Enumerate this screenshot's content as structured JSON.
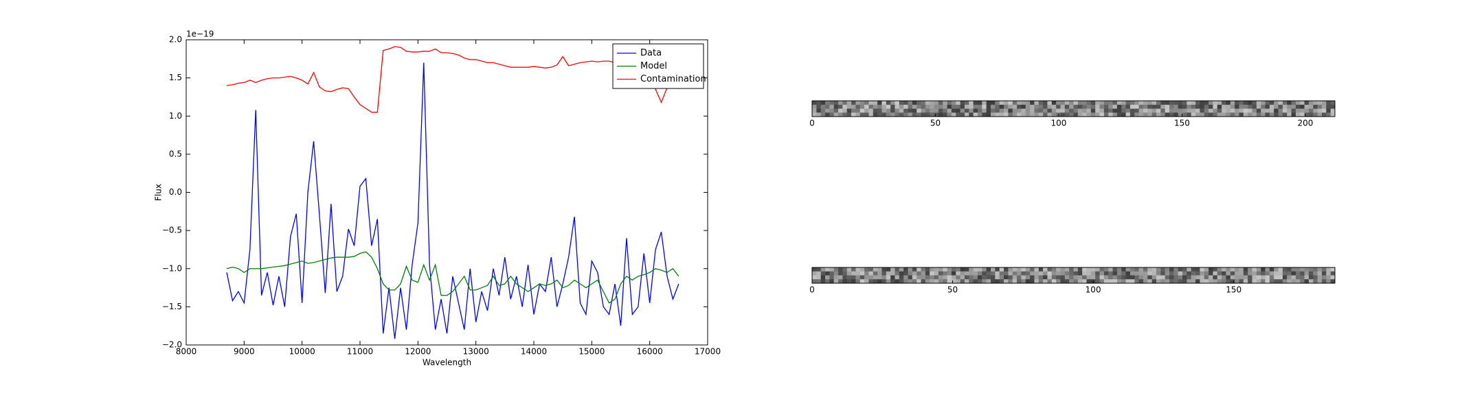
{
  "chart_data": [
    {
      "type": "line",
      "x_label": "Wavelength",
      "y_label": "Flux",
      "y_offset_label": "1e−19",
      "x": [
        8700,
        8800,
        8900,
        9000,
        9100,
        9200,
        9300,
        9400,
        9500,
        9600,
        9700,
        9800,
        9900,
        10000,
        10100,
        10200,
        10300,
        10400,
        10500,
        10600,
        10700,
        10800,
        10900,
        11000,
        11100,
        11200,
        11300,
        11400,
        11500,
        11600,
        11700,
        11800,
        11900,
        12000,
        12100,
        12200,
        12300,
        12400,
        12500,
        12600,
        12700,
        12800,
        12900,
        13000,
        13100,
        13200,
        13300,
        13400,
        13500,
        13600,
        13700,
        13800,
        13900,
        14000,
        14100,
        14200,
        14300,
        14400,
        14500,
        14600,
        14700,
        14800,
        14900,
        15000,
        15100,
        15200,
        15300,
        15400,
        15500,
        15600,
        15700,
        15800,
        15900,
        16000,
        16100,
        16200,
        16300,
        16400,
        16500
      ],
      "series": [
        {
          "name": "Data",
          "color": "#0000ff",
          "values": [
            -1.05,
            -1.42,
            -1.3,
            -1.45,
            -0.75,
            1.08,
            -1.35,
            -1.05,
            -1.48,
            -1.1,
            -1.5,
            -0.58,
            -0.28,
            -1.45,
            0.0,
            0.67,
            -0.3,
            -1.32,
            -0.15,
            -1.3,
            -1.1,
            -0.48,
            -0.7,
            0.08,
            0.18,
            -0.7,
            -0.35,
            -1.85,
            -1.25,
            -1.92,
            -1.25,
            -1.8,
            -0.95,
            -0.4,
            1.7,
            -0.95,
            -1.8,
            -1.4,
            -1.85,
            -1.1,
            -1.45,
            -1.8,
            -1.0,
            -1.7,
            -1.3,
            -1.55,
            -1.0,
            -1.35,
            -0.85,
            -1.4,
            -1.1,
            -1.5,
            -0.95,
            -1.6,
            -1.2,
            -1.3,
            -0.85,
            -1.5,
            -1.2,
            -0.85,
            -0.32,
            -1.45,
            -1.6,
            -0.9,
            -1.05,
            -1.5,
            -1.6,
            -1.2,
            -1.75,
            -0.6,
            -1.6,
            -1.5,
            -0.8,
            -1.45,
            -0.75,
            -0.52,
            -1.1,
            -1.4,
            -1.2
          ]
        },
        {
          "name": "Model",
          "color": "#008000",
          "values": [
            -1.0,
            -0.98,
            -1.0,
            -1.05,
            -1.0,
            -1.0,
            -1.0,
            -0.99,
            -0.98,
            -0.97,
            -0.96,
            -0.94,
            -0.92,
            -0.9,
            -0.93,
            -0.92,
            -0.9,
            -0.88,
            -0.86,
            -0.85,
            -0.85,
            -0.85,
            -0.84,
            -0.8,
            -0.78,
            -0.85,
            -1.0,
            -1.2,
            -1.28,
            -1.28,
            -1.2,
            -0.97,
            -1.15,
            -1.18,
            -0.95,
            -1.15,
            -0.95,
            -1.35,
            -1.35,
            -1.3,
            -1.2,
            -1.1,
            -1.28,
            -1.28,
            -1.25,
            -1.22,
            -1.1,
            -1.22,
            -1.2,
            -1.1,
            -1.2,
            -1.25,
            -1.3,
            -1.25,
            -1.2,
            -1.22,
            -1.2,
            -1.15,
            -1.25,
            -1.22,
            -1.15,
            -1.2,
            -1.25,
            -1.2,
            -1.15,
            -1.3,
            -1.45,
            -1.4,
            -1.2,
            -1.1,
            -1.15,
            -1.1,
            -1.08,
            -1.05,
            -1.0,
            -1.02,
            -1.05,
            -1.0,
            -1.1
          ]
        },
        {
          "name": "Contamination",
          "color": "#ff0000",
          "values": [
            1.4,
            1.41,
            1.43,
            1.44,
            1.47,
            1.44,
            1.47,
            1.49,
            1.5,
            1.5,
            1.51,
            1.52,
            1.5,
            1.47,
            1.42,
            1.57,
            1.38,
            1.33,
            1.32,
            1.35,
            1.37,
            1.36,
            1.25,
            1.15,
            1.1,
            1.05,
            1.05,
            1.86,
            1.88,
            1.91,
            1.9,
            1.85,
            1.84,
            1.84,
            1.85,
            1.85,
            1.88,
            1.83,
            1.83,
            1.82,
            1.8,
            1.76,
            1.74,
            1.74,
            1.72,
            1.7,
            1.7,
            1.68,
            1.66,
            1.64,
            1.64,
            1.64,
            1.64,
            1.65,
            1.64,
            1.63,
            1.64,
            1.67,
            1.78,
            1.66,
            1.68,
            1.7,
            1.71,
            1.72,
            1.71,
            1.72,
            1.72,
            1.7,
            1.71,
            1.72,
            1.72,
            1.74,
            1.72,
            1.6,
            1.35,
            1.18,
            1.37,
            1.38,
            1.36
          ]
        }
      ],
      "xlim": [
        8000,
        17000
      ],
      "xticks": [
        8000,
        9000,
        10000,
        11000,
        12000,
        13000,
        14000,
        15000,
        16000,
        17000
      ],
      "ylim": [
        -2.0,
        2.0
      ],
      "yticks": [
        {
          "value": -2.0,
          "label": "−2.0"
        },
        {
          "value": -1.5,
          "label": "−1.5"
        },
        {
          "value": -1.0,
          "label": "−1.0"
        },
        {
          "value": -0.5,
          "label": "−0.5"
        },
        {
          "value": 0.0,
          "label": "0.0"
        },
        {
          "value": 0.5,
          "label": "0.5"
        },
        {
          "value": 1.0,
          "label": "1.0"
        },
        {
          "value": 1.5,
          "label": "1.5"
        },
        {
          "value": 2.0,
          "label": "2.0"
        }
      ],
      "legend": "upper right",
      "grid": false
    },
    {
      "type": "image",
      "xlim": [
        0,
        212
      ],
      "xticks": [
        0,
        50,
        100,
        150,
        200
      ]
    },
    {
      "type": "image",
      "xlim": [
        0,
        186
      ],
      "xticks": [
        0,
        50,
        100,
        150
      ]
    }
  ]
}
